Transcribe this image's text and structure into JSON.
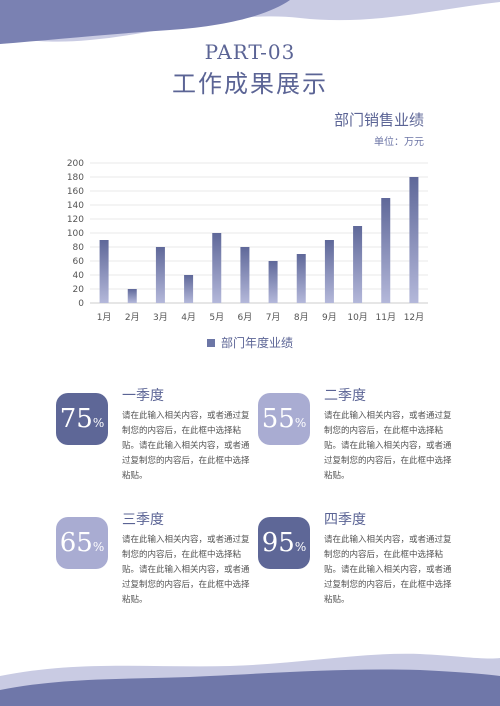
{
  "header": {
    "part": "PART-03",
    "title": "工作成果展示"
  },
  "chart": {
    "title": "部门销售业绩",
    "unit": "单位：万元"
  },
  "chart_data": {
    "type": "bar",
    "title": "部门销售业绩",
    "categories": [
      "1月",
      "2月",
      "3月",
      "4月",
      "5月",
      "6月",
      "7月",
      "8月",
      "9月",
      "10月",
      "11月",
      "12月"
    ],
    "series": [
      {
        "name": "部门年度业绩",
        "values": [
          90,
          20,
          80,
          40,
          100,
          80,
          60,
          70,
          90,
          110,
          150,
          180
        ]
      }
    ],
    "ylim": [
      0,
      200
    ],
    "yticks": [
      0,
      20,
      40,
      60,
      80,
      100,
      120,
      140,
      160,
      180,
      200
    ],
    "grid": true,
    "legend_position": "bottom",
    "bar_color": "#6c76a6"
  },
  "quarters": [
    {
      "name": "一季度",
      "value": "75",
      "pct": "%",
      "text": "请在此输入相关内容，或者通过复制您的内容后，在此框中选择粘贴。请在此输入相关内容，或者通过复制您的内容后，在此框中选择粘贴。"
    },
    {
      "name": "二季度",
      "value": "55",
      "pct": "%",
      "text": "请在此输入相关内容，或者通过复制您的内容后，在此框中选择粘贴。请在此输入相关内容，或者通过复制您的内容后，在此框中选择粘贴。"
    },
    {
      "name": "三季度",
      "value": "65",
      "pct": "%",
      "text": "请在此输入相关内容，或者通过复制您的内容后，在此框中选择粘贴。请在此输入相关内容，或者通过复制您的内容后，在此框中选择粘贴。"
    },
    {
      "name": "四季度",
      "value": "95",
      "pct": "%",
      "text": "请在此输入相关内容，或者通过复制您的内容后，在此框中选择粘贴。请在此输入相关内容，或者通过复制您的内容后，在此框中选择粘贴。"
    }
  ],
  "colors": {
    "primary": "#5b6495",
    "light": "#a8abd0",
    "badge_dark": "#5e6797",
    "badge_light": "#a9acd2"
  }
}
